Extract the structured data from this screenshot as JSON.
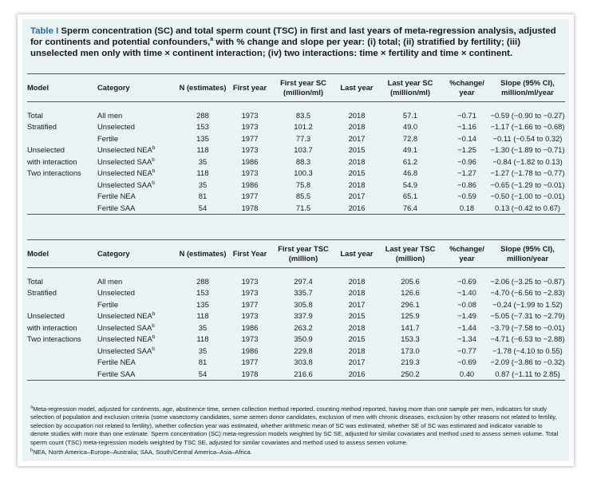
{
  "caption": {
    "label": "Table I",
    "text_a": " Sperm concentration (SC) and total sperm count (TSC) in first and last years of meta-regression analysis, adjusted for continents and potential confounders,",
    "sup_a": "a",
    "text_b": " with % change and slope per year: (i) total; (ii) stratified by fertility; (iii) unselected men only with time × continent interaction; (iv) two interactions: time × fertility and time × continent."
  },
  "sc_table": {
    "headers": {
      "model": "Model",
      "category": "Category",
      "n": "N (estimates)",
      "first_year": "First year",
      "first_val": "First year SC (million/ml)",
      "last_year": "Last year",
      "last_val": "Last year SC (million/ml)",
      "change": "%change/ year",
      "slope": "Slope (95% CI), million/ml/year"
    },
    "rows": [
      {
        "model": "Total",
        "category": "All men",
        "sup": "",
        "n": "288",
        "fy": "1973",
        "fv": "83.5",
        "ly": "2018",
        "lv": "57.1",
        "chg": "−0.71",
        "slope": "−0.59 (−0.90 to −0.27)"
      },
      {
        "model": "Stratified",
        "category": "Unselected",
        "sup": "",
        "n": "153",
        "fy": "1973",
        "fv": "101.2",
        "ly": "2018",
        "lv": "49.0",
        "chg": "−1.16",
        "slope": "−1.17 (−1.66 to −0.68)"
      },
      {
        "model": "",
        "category": "Fertile",
        "sup": "",
        "n": "135",
        "fy": "1977",
        "fv": "77.3",
        "ly": "2017",
        "lv": "72.8",
        "chg": "−0.14",
        "slope": "−0.11 (−0.54 to 0.32)"
      },
      {
        "model": "Unselected",
        "category": "Unselected NEA",
        "sup": "b",
        "n": "118",
        "fy": "1973",
        "fv": "103.7",
        "ly": "2015",
        "lv": "49.1",
        "chg": "−1.25",
        "slope": "−1.30 (−1.89 to −0.71)"
      },
      {
        "model": "with interaction",
        "category": "Unselected SAA",
        "sup": "b",
        "n": "35",
        "fy": "1986",
        "fv": "88.3",
        "ly": "2018",
        "lv": "61.2",
        "chg": "−0.96",
        "slope": "−0.84 (−1.82 to 0.13)"
      },
      {
        "model": "Two interactions",
        "category": "Unselected NEA",
        "sup": "b",
        "n": "118",
        "fy": "1973",
        "fv": "100.3",
        "ly": "2015",
        "lv": "46.8",
        "chg": "−1.27",
        "slope": "−1.27 (−1.78 to −0.77)"
      },
      {
        "model": "",
        "category": "Unselected SAA",
        "sup": "b",
        "n": "35",
        "fy": "1986",
        "fv": "75.8",
        "ly": "2018",
        "lv": "54.9",
        "chg": "−0.86",
        "slope": "−0.65 (−1.29 to −0.01)"
      },
      {
        "model": "",
        "category": "Fertile NEA",
        "sup": "",
        "n": "81",
        "fy": "1977",
        "fv": "85.5",
        "ly": "2017",
        "lv": "65.1",
        "chg": "−0.59",
        "slope": "−0.50 (−1.00 to −0.01)"
      },
      {
        "model": "",
        "category": "Fertile SAA",
        "sup": "",
        "n": "54",
        "fy": "1978",
        "fv": "71.5",
        "ly": "2016",
        "lv": "76.4",
        "chg": "0.18",
        "slope": "0.13 (−0.42 to 0.67)"
      }
    ]
  },
  "tsc_table": {
    "headers": {
      "model": "Model",
      "category": "Category",
      "n": "N (estimates)",
      "first_year": "First Year",
      "first_val": "First year TSC (million)",
      "last_year": "Last year",
      "last_val": "Last year TSC (million)",
      "change": "%change/ year",
      "slope": "Slope (95% CI), million/year"
    },
    "rows": [
      {
        "model": "Total",
        "category": "All men",
        "sup": "",
        "n": "288",
        "fy": "1973",
        "fv": "297.4",
        "ly": "2018",
        "lv": "205.6",
        "chg": "−0.69",
        "slope": "−2.06 (−3.25 to −0.87)"
      },
      {
        "model": "Stratified",
        "category": "Unselected",
        "sup": "",
        "n": "153",
        "fy": "1973",
        "fv": "335.7",
        "ly": "2018",
        "lv": "126.6",
        "chg": "−1.40",
        "slope": "−4.70 (−6.56 to −2.83)"
      },
      {
        "model": "",
        "category": "Fertile",
        "sup": "",
        "n": "135",
        "fy": "1977",
        "fv": "305.8",
        "ly": "2017",
        "lv": "296.1",
        "chg": "−0.08",
        "slope": "−0.24 (−1.99 to 1.52)"
      },
      {
        "model": "Unselected",
        "category": "Unselected NEA",
        "sup": "b",
        "n": "118",
        "fy": "1973",
        "fv": "337.9",
        "ly": "2015",
        "lv": "125.9",
        "chg": "−1.49",
        "slope": "−5.05 (−7.31 to −2.79)"
      },
      {
        "model": "with interaction",
        "category": "Unselected SAA",
        "sup": "b",
        "n": "35",
        "fy": "1986",
        "fv": "263.2",
        "ly": "2018",
        "lv": "141.7",
        "chg": "−1.44",
        "slope": "−3.79 (−7.58 to −0.01)"
      },
      {
        "model": "Two interactions",
        "category": "Unselected NEA",
        "sup": "b",
        "n": "118",
        "fy": "1973",
        "fv": "350.9",
        "ly": "2015",
        "lv": "153.3",
        "chg": "−1.34",
        "slope": "−4.71 (−6.53 to −2.88)"
      },
      {
        "model": "",
        "category": "Unselected SAA",
        "sup": "b",
        "n": "35",
        "fy": "1986",
        "fv": "229.8",
        "ly": "2018",
        "lv": "173.0",
        "chg": "−0.77",
        "slope": "−1.78 (−4.10 to 0.55)"
      },
      {
        "model": "",
        "category": "Fertile NEA",
        "sup": "",
        "n": "81",
        "fy": "1977",
        "fv": "303.8",
        "ly": "2017",
        "lv": "219.3",
        "chg": "−0.69",
        "slope": "−2.09 (−3.86 to −0.32)"
      },
      {
        "model": "",
        "category": "Fertile SAA",
        "sup": "",
        "n": "54",
        "fy": "1978",
        "fv": "216.6",
        "ly": "2016",
        "lv": "250.2",
        "chg": "0.40",
        "slope": "0.87 (−1.11 to 2.85)"
      }
    ]
  },
  "footnotes": {
    "a_mark": "a",
    "a_text": "Meta-regression model, adjusted for continents, age, abstinence time, semen collection method reported, counting method reported, having more than one sample per men, indicators for study selection of population and exclusion criteria (some vasectomy candidates, some semen donor candidates, exclusion of men with chronic diseases, exclusion by other reasons not related to fertility, selection by occupation not related to fertility), whether collection year was estimated, whether arithmetic mean of SC was estimated, whether SE of SC was estimated and indicator variable to denote studies with more than one estimate. Sperm concentration (SC) meta-regression models weighted by SC SE, adjusted for similar covariates and method used to assess semen volume. Total sperm count (TSC) meta-regression models weighted by TSC SE, adjusted for similar covariates and method used to assess semen volume.",
    "b_mark": "b",
    "b_text": "NEA, North America–Europe–Australia; SAA, South/Central America–Asia–Africa."
  }
}
